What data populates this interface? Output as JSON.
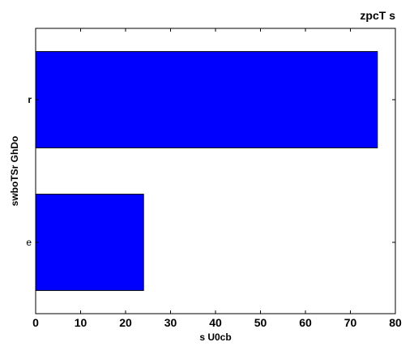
{
  "chart_data": {
    "type": "bar",
    "orientation": "horizontal",
    "title": "zpcT s",
    "xlabel": "s U0cb",
    "ylabel": "swboTSr  GhDo",
    "categories": [
      "e",
      "r"
    ],
    "values": [
      24,
      76
    ],
    "xlim": [
      0,
      80
    ],
    "xticks": [
      "0",
      "10",
      "20",
      "30",
      "40",
      "50",
      "60",
      "70",
      "80"
    ],
    "bar_color": "#0000ff",
    "edge_color": "#000000",
    "grid": false,
    "legend": "none"
  }
}
